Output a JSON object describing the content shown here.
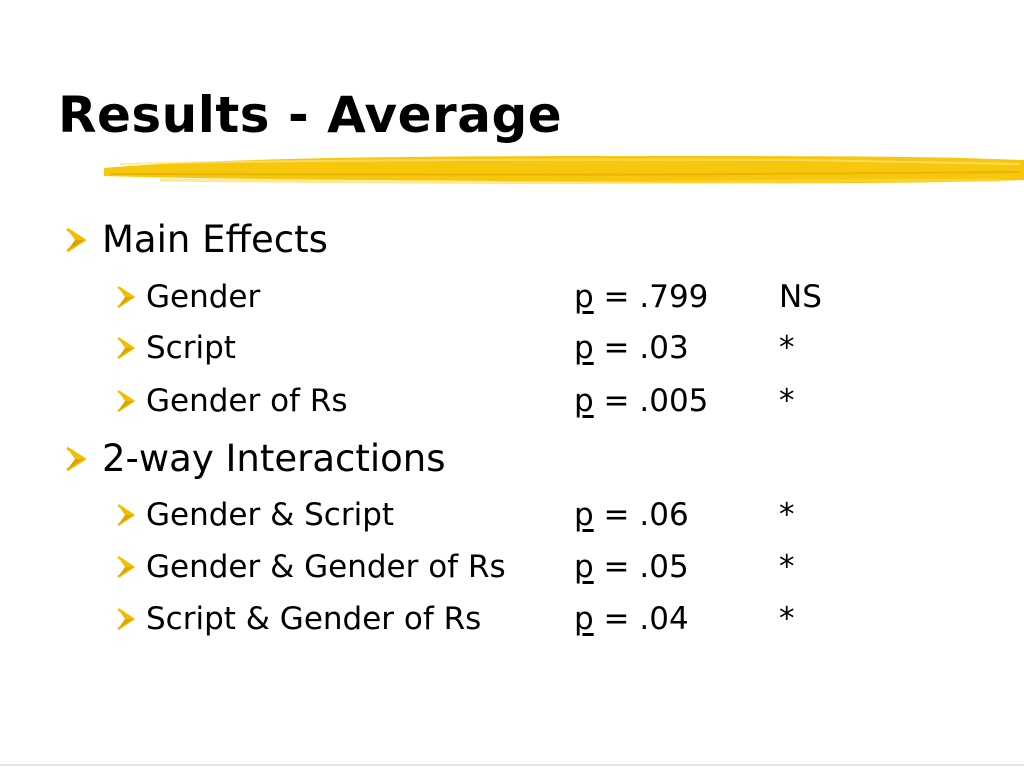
{
  "slide": {
    "title": "Results - Average",
    "accent_color": "#F5C400",
    "bullet_color": "#F2BE00",
    "sections": [
      {
        "label": "Main Effects",
        "items": [
          {
            "label": "Gender",
            "p_symbol": "p",
            "p_rest": " = .799",
            "sig": "NS"
          },
          {
            "label": "Script",
            "p_symbol": "p",
            "p_rest": " = .03",
            "sig": "*"
          },
          {
            "label": "Gender of Rs",
            "p_symbol": "p",
            "p_rest": " = .005",
            "sig": "*"
          }
        ]
      },
      {
        "label": "2-way Interactions",
        "items": [
          {
            "label": "Gender & Script",
            "p_symbol": "p",
            "p_rest": " = .06",
            "sig": "*"
          },
          {
            "label": "Gender & Gender of Rs",
            "p_symbol": "p",
            "p_rest": " = .05",
            "sig": "*"
          },
          {
            "label": "Script & Gender of Rs",
            "p_symbol": "p",
            "p_rest": " = .04",
            "sig": "*"
          }
        ]
      }
    ]
  }
}
